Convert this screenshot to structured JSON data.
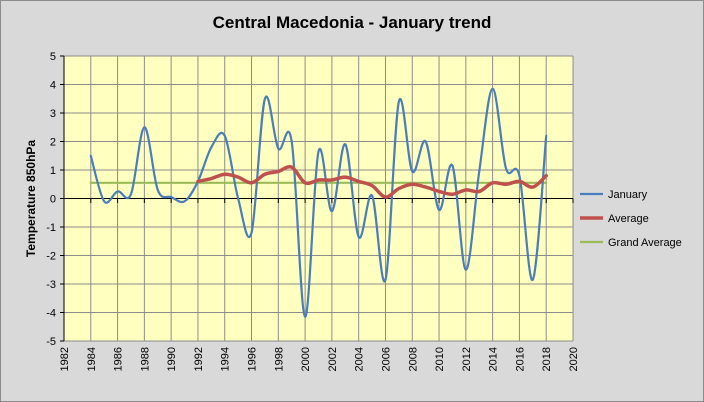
{
  "chart_data": {
    "type": "line",
    "title": "Central Macedonia - January trend",
    "ylabel": "Temperature 850hPa",
    "xlabel": "",
    "xlim": [
      1982,
      2020
    ],
    "ylim": [
      -5,
      5
    ],
    "xticks": [
      "1982",
      "1984",
      "1986",
      "1988",
      "1990",
      "1992",
      "1994",
      "1996",
      "1998",
      "2000",
      "2002",
      "2004",
      "2006",
      "2008",
      "2010",
      "2012",
      "2014",
      "2016",
      "2018",
      "2020"
    ],
    "yticks": [
      "5",
      "4",
      "3",
      "2",
      "1",
      "0",
      "-1",
      "-2",
      "-3",
      "-4",
      "-5"
    ],
    "grid": true,
    "legend_position": "right",
    "series": [
      {
        "name": "January",
        "color": "#4a7ebb",
        "smooth": true,
        "x": [
          1984,
          1985,
          1986,
          1987,
          1988,
          1989,
          1990,
          1991,
          1992,
          1993,
          1994,
          1995,
          1996,
          1997,
          1998,
          1999,
          2000,
          2001,
          2002,
          2003,
          2004,
          2005,
          2006,
          2007,
          2008,
          2009,
          2010,
          2011,
          2012,
          2013,
          2014,
          2015,
          2016,
          2017,
          2018
        ],
        "y": [
          1.5,
          -0.1,
          0.25,
          0.15,
          2.5,
          0.3,
          0.05,
          -0.1,
          0.6,
          1.8,
          2.2,
          0.0,
          -1.2,
          3.5,
          1.75,
          2.0,
          -4.15,
          1.65,
          -0.45,
          1.9,
          -1.35,
          0.1,
          -2.85,
          3.4,
          0.95,
          2.0,
          -0.4,
          1.15,
          -2.5,
          0.95,
          3.85,
          1.05,
          0.8,
          -2.85,
          2.2
        ]
      },
      {
        "name": "Average",
        "color": "#c0504d",
        "smooth": true,
        "x": [
          1992,
          1993,
          1994,
          1995,
          1996,
          1997,
          1998,
          1999,
          2000,
          2001,
          2002,
          2003,
          2004,
          2005,
          2006,
          2007,
          2008,
          2009,
          2010,
          2011,
          2012,
          2013,
          2014,
          2015,
          2016,
          2017,
          2018
        ],
        "y": [
          0.6,
          0.7,
          0.85,
          0.75,
          0.55,
          0.85,
          0.95,
          1.1,
          0.55,
          0.65,
          0.65,
          0.75,
          0.6,
          0.45,
          0.05,
          0.35,
          0.5,
          0.4,
          0.25,
          0.15,
          0.3,
          0.25,
          0.55,
          0.5,
          0.6,
          0.4,
          0.8
        ]
      },
      {
        "name": "Grand Average",
        "color": "#9bbb59",
        "smooth": false,
        "x": [
          1984,
          2018
        ],
        "y": [
          0.55,
          0.55
        ]
      }
    ]
  },
  "colors": {
    "plot_background": "#ffffc0",
    "frame_background": "#d9d9d9",
    "gridline": "#8c8c8c",
    "axis": "#000000"
  }
}
